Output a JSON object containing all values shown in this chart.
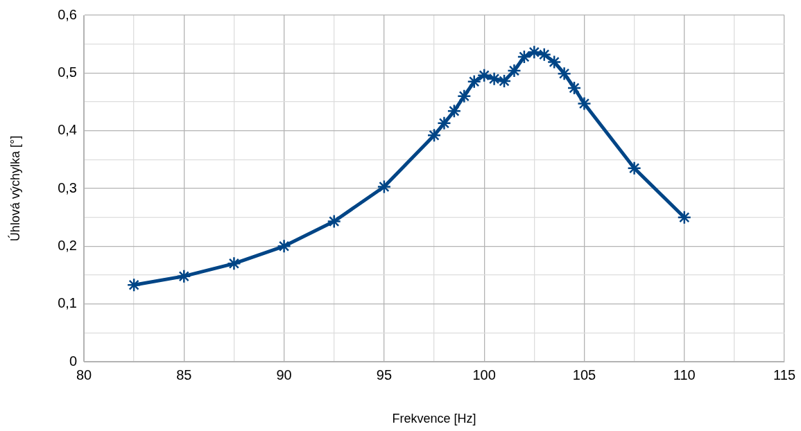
{
  "chart_data": {
    "type": "line",
    "xlabel": "Frekvence [Hz]",
    "ylabel": "Úhlová výchylka [°]",
    "x": [
      82.5,
      85,
      87.5,
      90,
      92.5,
      95,
      97.5,
      98,
      98.5,
      99,
      99.5,
      100,
      100.5,
      101,
      101.5,
      102,
      102.5,
      103,
      103.5,
      104,
      104.5,
      105,
      107.5,
      110
    ],
    "series": [
      {
        "color": "#004586",
        "values": [
          0.133,
          0.148,
          0.17,
          0.2,
          0.243,
          0.303,
          0.392,
          0.413,
          0.434,
          0.46,
          0.485,
          0.496,
          0.49,
          0.486,
          0.504,
          0.528,
          0.536,
          0.532,
          0.519,
          0.499,
          0.474,
          0.447,
          0.335,
          0.25
        ]
      }
    ],
    "xlim": [
      80,
      115
    ],
    "xticks": [
      80,
      {
        "value": 82.5,
        "label": null
      },
      85,
      {
        "value": 87.5,
        "label": null
      },
      90,
      {
        "value": 92.5,
        "label": null
      },
      95,
      {
        "value": 97.5,
        "label": null
      },
      100,
      {
        "value": 102.5,
        "label": null
      },
      105,
      {
        "value": 107.5,
        "label": null
      },
      110,
      {
        "value": 112.5,
        "label": null
      },
      115
    ],
    "ylim": [
      0,
      0.6
    ],
    "yticks": [
      {
        "value": 0,
        "label": "0"
      },
      {
        "value": 0.05,
        "label": null
      },
      {
        "value": 0.1,
        "label": "0,1"
      },
      {
        "value": 0.15,
        "label": null
      },
      {
        "value": 0.2,
        "label": "0,2"
      },
      {
        "value": 0.25,
        "label": null
      },
      {
        "value": 0.3,
        "label": "0,3"
      },
      {
        "value": 0.35,
        "label": null
      },
      {
        "value": 0.4,
        "label": "0,4"
      },
      {
        "value": 0.45,
        "label": null
      },
      {
        "value": 0.5,
        "label": "0,5"
      },
      {
        "value": 0.55,
        "label": null
      },
      {
        "value": 0.6,
        "label": "0,6"
      }
    ],
    "grid": true,
    "legend": false,
    "marker": "cross",
    "line_style": "solid"
  }
}
